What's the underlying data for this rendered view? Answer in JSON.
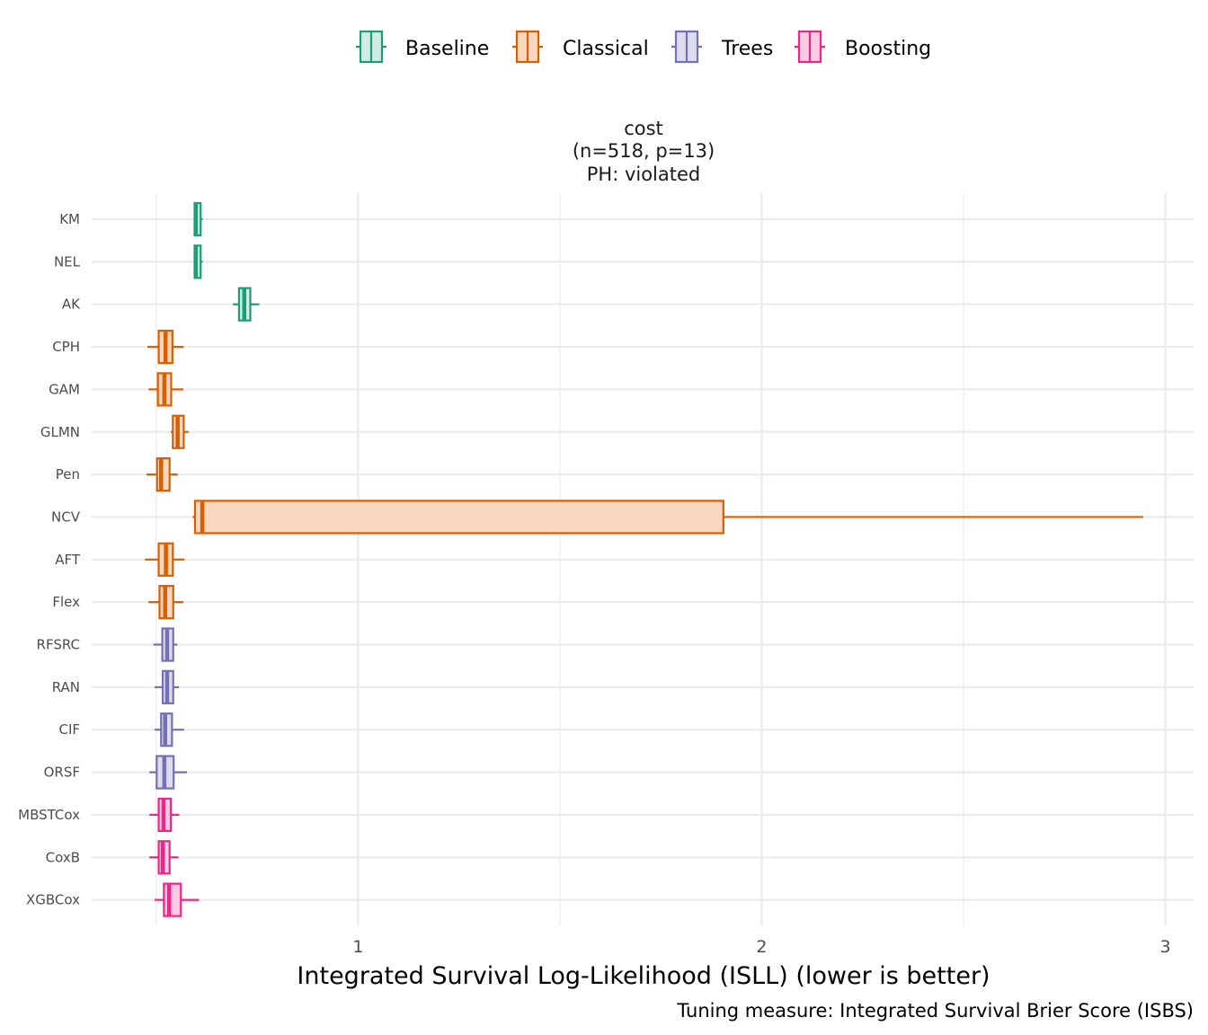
{
  "chart_data": {
    "type": "boxplot",
    "orientation": "horizontal",
    "facet_title": [
      "cost",
      "(n=518, p=13)",
      "PH: violated"
    ],
    "xlabel": "Integrated Survival Log-Likelihood (ISLL) (lower is better)",
    "caption": "Tuning measure: Integrated Survival Brier Score (ISBS)",
    "xlim": [
      0.34,
      3.07
    ],
    "xticks": [
      1,
      2,
      3
    ],
    "xtick_labels": [
      "1",
      "2",
      "3"
    ],
    "legend": {
      "placement": "top",
      "entries": [
        {
          "name": "Baseline",
          "color": "#1B9E77",
          "fill": "#D1ECE4"
        },
        {
          "name": "Classical",
          "color": "#D95F02",
          "fill": "#F7D7C0"
        },
        {
          "name": "Trees",
          "color": "#7570B3",
          "fill": "#DDDCEC"
        },
        {
          "name": "Boosting",
          "color": "#E7298A",
          "fill": "#F9CAE2"
        }
      ]
    },
    "categories": [
      "KM",
      "NEL",
      "AK",
      "CPH",
      "GAM",
      "GLMN",
      "Pen",
      "NCV",
      "AFT",
      "Flex",
      "RFSRC",
      "RAN",
      "CIF",
      "ORSF",
      "MBSTCox",
      "CoxB",
      "XGBCox"
    ],
    "boxes": [
      {
        "label": "KM",
        "group": "Baseline",
        "min": 0.593,
        "q1": 0.595,
        "median": 0.598,
        "q3": 0.61,
        "max": 0.615
      },
      {
        "label": "NEL",
        "group": "Baseline",
        "min": 0.593,
        "q1": 0.595,
        "median": 0.598,
        "q3": 0.61,
        "max": 0.615
      },
      {
        "label": "AK",
        "group": "Baseline",
        "min": 0.69,
        "q1": 0.705,
        "median": 0.718,
        "q3": 0.733,
        "max": 0.755
      },
      {
        "label": "CPH",
        "group": "Classical",
        "min": 0.478,
        "q1": 0.506,
        "median": 0.523,
        "q3": 0.54,
        "max": 0.568
      },
      {
        "label": "GAM",
        "group": "Classical",
        "min": 0.481,
        "q1": 0.504,
        "median": 0.52,
        "q3": 0.537,
        "max": 0.567
      },
      {
        "label": "GLMN",
        "group": "Classical",
        "min": 0.536,
        "q1": 0.541,
        "median": 0.553,
        "q3": 0.568,
        "max": 0.58
      },
      {
        "label": "Pen",
        "group": "Classical",
        "min": 0.476,
        "q1": 0.502,
        "median": 0.512,
        "q3": 0.533,
        "max": 0.553
      },
      {
        "label": "NCV",
        "group": "Classical",
        "min": 0.59,
        "q1": 0.596,
        "median": 0.614,
        "q3": 1.905,
        "max": 2.945
      },
      {
        "label": "AFT",
        "group": "Classical",
        "min": 0.472,
        "q1": 0.506,
        "median": 0.524,
        "q3": 0.541,
        "max": 0.57
      },
      {
        "label": "Flex",
        "group": "Classical",
        "min": 0.481,
        "q1": 0.508,
        "median": 0.522,
        "q3": 0.542,
        "max": 0.567
      },
      {
        "label": "RFSRC",
        "group": "Trees",
        "min": 0.493,
        "q1": 0.515,
        "median": 0.527,
        "q3": 0.542,
        "max": 0.552
      },
      {
        "label": "RAN",
        "group": "Trees",
        "min": 0.496,
        "q1": 0.516,
        "median": 0.527,
        "q3": 0.542,
        "max": 0.556
      },
      {
        "label": "CIF",
        "group": "Trees",
        "min": 0.496,
        "q1": 0.512,
        "median": 0.522,
        "q3": 0.539,
        "max": 0.569
      },
      {
        "label": "ORSF",
        "group": "Trees",
        "min": 0.483,
        "q1": 0.501,
        "median": 0.52,
        "q3": 0.543,
        "max": 0.576
      },
      {
        "label": "MBSTCox",
        "group": "Boosting",
        "min": 0.483,
        "q1": 0.506,
        "median": 0.518,
        "q3": 0.536,
        "max": 0.557
      },
      {
        "label": "CoxB",
        "group": "Boosting",
        "min": 0.483,
        "q1": 0.506,
        "median": 0.516,
        "q3": 0.533,
        "max": 0.555
      },
      {
        "label": "XGBCox",
        "group": "Boosting",
        "min": 0.496,
        "q1": 0.519,
        "median": 0.532,
        "q3": 0.561,
        "max": 0.606
      }
    ],
    "grid": true
  }
}
